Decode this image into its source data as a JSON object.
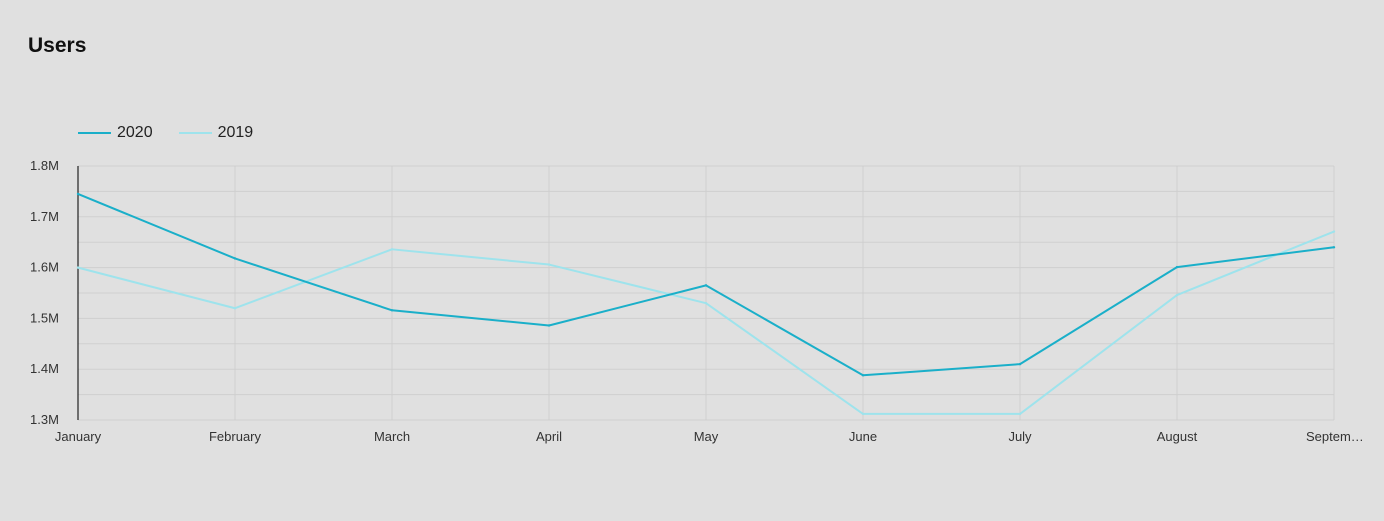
{
  "chart_data": {
    "type": "line",
    "title": "Users",
    "categories": [
      "January",
      "February",
      "March",
      "April",
      "May",
      "June",
      "July",
      "August",
      "Septem…"
    ],
    "series": [
      {
        "name": "2020",
        "color": "#1aafc9",
        "values": [
          1745000,
          1618000,
          1516000,
          1486000,
          1565000,
          1388000,
          1410000,
          1601000,
          1640000
        ]
      },
      {
        "name": "2019",
        "color": "#9ee3ec",
        "values": [
          1600000,
          1520000,
          1636000,
          1606000,
          1530000,
          1312000,
          1312000,
          1546000,
          1671000
        ]
      }
    ],
    "ylim": [
      1300000,
      1800000
    ],
    "yticks": [
      1300000,
      1400000,
      1500000,
      1600000,
      1700000,
      1800000
    ],
    "ytick_labels": [
      "1.3M",
      "1.4M",
      "1.5M",
      "1.6M",
      "1.7M",
      "1.8M"
    ],
    "grid": true,
    "legend_position": "top-left",
    "xlabel": "",
    "ylabel": ""
  }
}
